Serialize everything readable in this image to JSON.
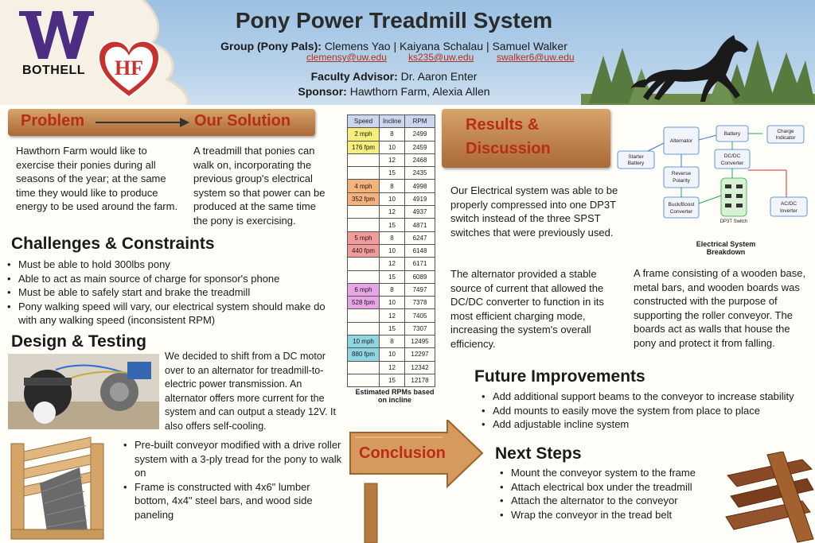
{
  "header": {
    "title": "Pony Power Treadmill System",
    "school": "BOTHELL",
    "logo_letter": "W",
    "sponsor_logo": "HF",
    "group_label": "Group (Pony Pals):",
    "members": "Clemens Yao  |  Kaiyana Schalau  |  Samuel Walker",
    "emails": [
      "clemensy@uw.edu",
      "ks235@uw.edu",
      "swalker6@uw.edu"
    ],
    "advisor_label": "Faculty Advisor:",
    "advisor": "Dr. Aaron Enter",
    "sponsor_label": "Sponsor:",
    "sponsor": "Hawthorn Farm, Alexia Allen"
  },
  "problem": {
    "heading": "Problem",
    "text": "Hawthorn Farm would like to exercise their ponies during all seasons of the year; at the same time they would like to produce energy to be used around the farm."
  },
  "solution": {
    "heading": "Our Solution",
    "text": "A treadmill that ponies can walk on, incorporating the previous group's electrical system so that power can be produced at the same time the pony is exercising."
  },
  "challenges": {
    "heading": "Challenges & Constraints",
    "items": [
      "Must be able to hold 300lbs pony",
      "Able to act as main source of charge for sponsor's phone",
      "Must be able to safely start and brake the treadmill",
      "Pony walking speed will vary, our electrical system should make do with any walking speed (inconsistent RPM)"
    ]
  },
  "design": {
    "heading": "Design & Testing",
    "text": "We decided to shift from a DC motor over to an alternator for treadmill-to-electric power transmission.  An alternator offers more current for the system and can output a steady 12V.  It also offers self-cooling.",
    "items": [
      "Pre-built conveyor modified with a drive roller system with a 3-ply tread for the pony to walk on",
      "Frame is constructed with 4x6\" lumber bottom, 4x4\" steel bars, and wood side paneling"
    ]
  },
  "table": {
    "headers": [
      "Speed",
      "Incline",
      "RPM"
    ],
    "groups": [
      {
        "speed": "2 mph",
        "fpm": "176 fpm",
        "color": "#f3ef7a",
        "rows": [
          [
            "8",
            "2499"
          ],
          [
            "10",
            "2459"
          ],
          [
            "12",
            "2468"
          ],
          [
            "15",
            "2435"
          ]
        ]
      },
      {
        "speed": "4 mph",
        "fpm": "352 fpm",
        "color": "#f5b27a",
        "rows": [
          [
            "8",
            "4998"
          ],
          [
            "10",
            "4919"
          ],
          [
            "12",
            "4937"
          ],
          [
            "15",
            "4871"
          ]
        ]
      },
      {
        "speed": "5 mph",
        "fpm": "440 fpm",
        "color": "#f39a9a",
        "rows": [
          [
            "8",
            "6247"
          ],
          [
            "10",
            "6148"
          ],
          [
            "12",
            "6171"
          ],
          [
            "15",
            "6089"
          ]
        ]
      },
      {
        "speed": "6 mph",
        "fpm": "528 fpm",
        "color": "#e9a6e6",
        "rows": [
          [
            "8",
            "7497"
          ],
          [
            "10",
            "7378"
          ],
          [
            "12",
            "7405"
          ],
          [
            "15",
            "7307"
          ]
        ]
      },
      {
        "speed": "10 mph",
        "fpm": "880 fpm",
        "color": "#8fd6e3",
        "rows": [
          [
            "8",
            "12495"
          ],
          [
            "10",
            "12297"
          ],
          [
            "12",
            "12342"
          ],
          [
            "15",
            "12178"
          ]
        ]
      }
    ],
    "caption": "Estimated RPMs based on incline"
  },
  "results": {
    "heading_line1": "Results &",
    "heading_line2": "Discussion",
    "p1": "Our Electrical system was able to be properly compressed into one DP3T switch instead of the three SPST switches that were previously used.",
    "p2": "The alternator provided a stable source of current that allowed the DC/DC converter to function in its most efficient charging mode, increasing the system's overall efficiency.",
    "p3": "A frame consisting of a wooden base, metal bars, and wooden boards was constructed with the purpose of supporting the roller conveyor. The boards act as walls that house the pony and  protect it from falling."
  },
  "diagram": {
    "nodes": {
      "alternator": "Alternator",
      "battery": "Battery",
      "charge": "Charge Indicator",
      "starter": "Starter Battery",
      "dcdc": "DC/DC Converter",
      "reverse": "Reverse Polarity",
      "buck": "Buck/Boost Converter",
      "dp3t": "DP3T Switch",
      "inverter": "AC/DC Inverter"
    },
    "caption": "Electrical System Breakdown"
  },
  "future": {
    "heading": "Future Improvements",
    "items": [
      "Add additional support beams to the conveyor to increase stability",
      "Add mounts to easily move the system from place to place",
      "Add adjustable incline system"
    ]
  },
  "conclusion": {
    "heading": "Conclusion"
  },
  "next": {
    "heading": "Next Steps",
    "items": [
      "Mount the conveyor system to the frame",
      "Attach electrical box under the treadmill",
      "Attach the alternator to the conveyor",
      "Wrap the conveyor in the tread belt"
    ]
  }
}
